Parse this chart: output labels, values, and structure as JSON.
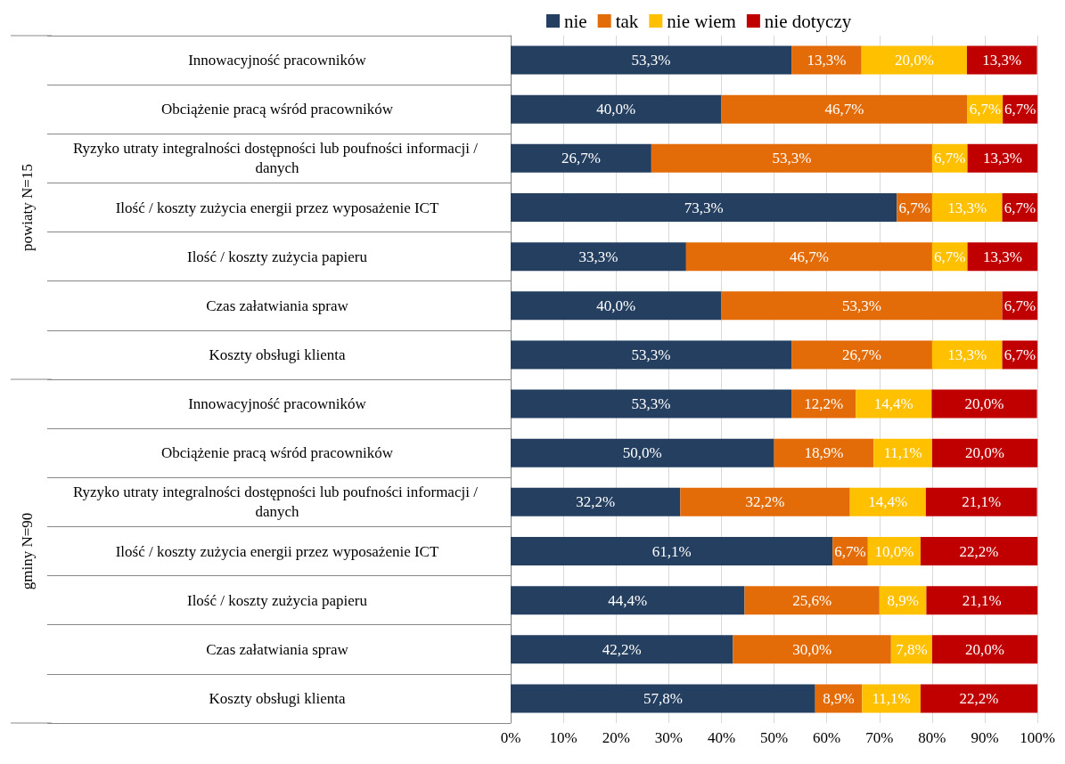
{
  "chart_data": {
    "type": "bar",
    "orientation": "horizontal",
    "stacked": true,
    "legend": "top",
    "grid": "x",
    "categories": [
      "Innowacyjność pracowników",
      "Obciążenie pracą wśród pracowników",
      "Ryzyko utraty integralności dostępności lub poufności informacji / danych",
      "Ilość / koszty zużycia energii przez wyposażenie ICT",
      "Ilość / koszty zużycia papieru",
      "Czas załatwiania spraw",
      "Koszty obsługi klienta",
      "Innowacyjność pracowników",
      "Obciążenie pracą wśród pracowników",
      "Ryzyko utraty integralności dostępności lub poufności informacji / danych",
      "Ilość / koszty zużycia energii przez wyposażenie ICT",
      "Ilość / koszty zużycia papieru",
      "Czas załatwiania spraw",
      "Koszty obsługi klienta"
    ],
    "annotations": [
      "powiaty N=15",
      "gminy N=90"
    ],
    "xlim": [
      0,
      100
    ],
    "xticks": [
      {
        "value": 0,
        "label": "0%"
      },
      {
        "value": 10,
        "label": "10%"
      },
      {
        "value": 20,
        "label": "20%"
      },
      {
        "value": 30,
        "label": "30%"
      },
      {
        "value": 40,
        "label": "40%"
      },
      {
        "value": 50,
        "label": "50%"
      },
      {
        "value": 60,
        "label": "60%"
      },
      {
        "value": 70,
        "label": "70%"
      },
      {
        "value": 80,
        "label": "80%"
      },
      {
        "value": 90,
        "label": "90%"
      },
      {
        "value": 100,
        "label": "100%"
      }
    ],
    "series": [
      {
        "name": "nie",
        "color": "#243f60",
        "values": [
          53.3,
          40.0,
          26.7,
          73.3,
          33.3,
          40.0,
          53.3,
          53.3,
          50.0,
          32.2,
          61.1,
          44.4,
          42.2,
          57.8
        ],
        "value_labels": [
          "53,3%",
          "40,0%",
          "26,7%",
          "73,3%",
          "33,3%",
          "40,0%",
          "53,3%",
          "53,3%",
          "50,0%",
          "32,2%",
          "61,1%",
          "44,4%",
          "42,2%",
          "57,8%"
        ]
      },
      {
        "name": "tak",
        "color": "#e36c09",
        "values": [
          13.3,
          46.7,
          53.3,
          6.7,
          46.7,
          53.3,
          26.7,
          12.2,
          18.9,
          32.2,
          6.7,
          25.6,
          30.0,
          8.9
        ],
        "value_labels": [
          "13,3%",
          "46,7%",
          "53,3%",
          "6,7%",
          "46,7%",
          "53,3%",
          "26,7%",
          "12,2%",
          "18,9%",
          "32,2%",
          "6,7%",
          "25,6%",
          "30,0%",
          "8,9%"
        ]
      },
      {
        "name": "nie wiem",
        "color": "#ffc000",
        "values": [
          20.0,
          6.7,
          6.7,
          13.3,
          6.7,
          null,
          13.3,
          14.4,
          11.1,
          14.4,
          10.0,
          8.9,
          7.8,
          11.1
        ],
        "value_labels": [
          "20,0%",
          "6,7%",
          "6,7%",
          "13,3%",
          "6,7%",
          null,
          "13,3%",
          "14,4%",
          "11,1%",
          "14,4%",
          "10,0%",
          "8,9%",
          "7,8%",
          "11,1%"
        ]
      },
      {
        "name": "nie dotyczy",
        "color": "#c00000",
        "values": [
          13.3,
          6.7,
          13.3,
          6.7,
          13.3,
          6.7,
          6.7,
          20.0,
          20.0,
          21.1,
          22.2,
          21.1,
          20.0,
          22.2
        ],
        "value_labels": [
          "13,3%",
          "6,7%",
          "13,3%",
          "6,7%",
          "13,3%",
          "6,7%",
          "6,7%",
          "20,0%",
          "20,0%",
          "21,1%",
          "22,2%",
          "21,1%",
          "20,0%",
          "22,2%"
        ]
      }
    ]
  }
}
